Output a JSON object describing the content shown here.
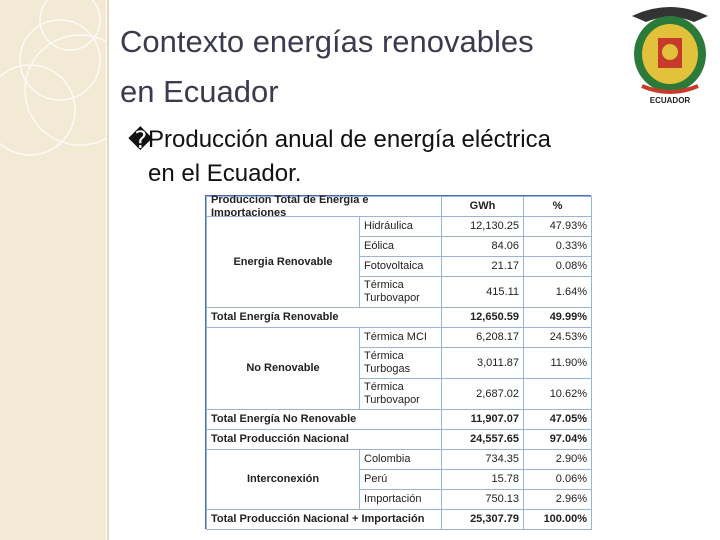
{
  "title": [
    "Contexto energías renovables",
    "en Ecuador"
  ],
  "emblem": {
    "caption": "ECUADOR"
  },
  "bullet": {
    "mark": "�",
    "lines": [
      "Producción anual de energía eléctrica",
      "en el Ecuador."
    ]
  },
  "table": {
    "header": [
      "Produccion Total de Energia e Importaciones",
      "GWh",
      "%"
    ],
    "sections": [
      {
        "group": "Energia Renovable",
        "rows": [
          {
            "label": [
              "Hidráulica"
            ],
            "gwh": "12,130.25",
            "pct": "47.93%"
          },
          {
            "label": [
              "Eólica"
            ],
            "gwh": "84.06",
            "pct": "0.33%"
          },
          {
            "label": [
              "Fotovoltaica"
            ],
            "gwh": "21.17",
            "pct": "0.08%"
          },
          {
            "label": [
              "Térmica",
              "Turbovapor"
            ],
            "gwh": "415.11",
            "pct": "1.64%"
          }
        ]
      },
      {
        "total": "Total Energía Renovable",
        "gwh": "12,650.59",
        "pct": "49.99%"
      },
      {
        "group": "No Renovable",
        "rows": [
          {
            "label": [
              "Térmica MCI"
            ],
            "gwh": "6,208.17",
            "pct": "24.53%"
          },
          {
            "label": [
              "Térmica",
              "Turbogas"
            ],
            "gwh": "3,011.87",
            "pct": "11.90%"
          },
          {
            "label": [
              "Térmica",
              "Turbovapor"
            ],
            "gwh": "2,687.02",
            "pct": "10.62%"
          }
        ]
      },
      {
        "total": "Total Energía No Renovable",
        "gwh": "11,907.07",
        "pct": "47.05%"
      },
      {
        "total": "Total Producción Nacional",
        "gwh": "24,557.65",
        "pct": "97.04%"
      },
      {
        "group": "Interconexión",
        "rows": [
          {
            "label": [
              "Colombia"
            ],
            "gwh": "734.35",
            "pct": "2.90%"
          },
          {
            "label": [
              "Perú"
            ],
            "gwh": "15.78",
            "pct": "0.06%"
          },
          {
            "label": [
              "Importación"
            ],
            "gwh": "750.13",
            "pct": "2.96%"
          }
        ]
      },
      {
        "total": "Total Producción Nacional + Importación",
        "gwh": "25,307.79",
        "pct": "100.00%"
      }
    ]
  }
}
